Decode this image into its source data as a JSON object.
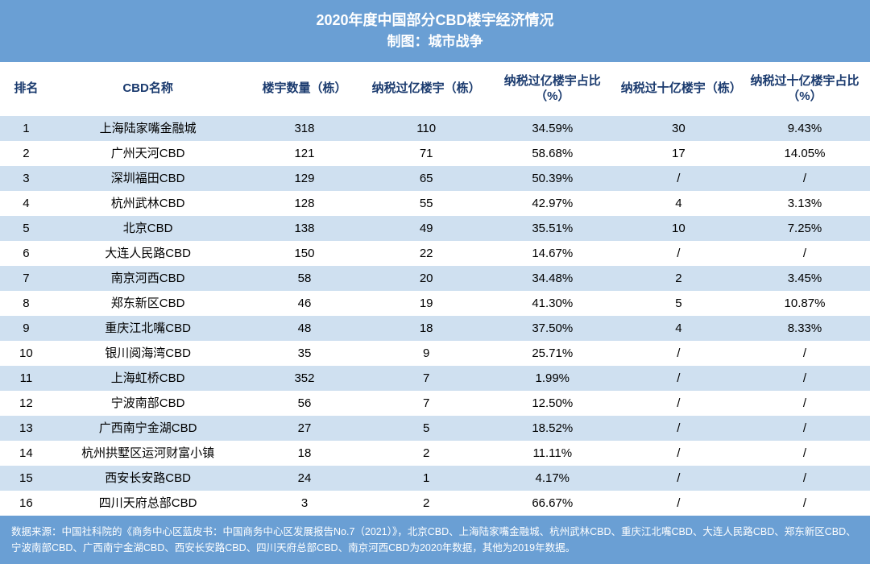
{
  "header": {
    "title": "2020年度中国部分CBD楼宇经济情况",
    "subtitle": "制图：城市战争"
  },
  "table": {
    "type": "table",
    "background_color": "#ffffff",
    "odd_row_color": "#cfe0f0",
    "even_row_color": "#ffffff",
    "header_bg": "#6a9fd4",
    "header_text_color": "#ffffff",
    "th_text_color": "#1a3a6e",
    "font_size": 15,
    "columns": [
      {
        "key": "rank",
        "label": "排名",
        "width": "6%"
      },
      {
        "key": "name",
        "label": "CBD名称",
        "width": "22%"
      },
      {
        "key": "building_count",
        "label": "楼宇数量（栋）",
        "width": "14%"
      },
      {
        "key": "over_yi",
        "label": "纳税过亿楼宇（栋）",
        "width": "14%"
      },
      {
        "key": "over_yi_pct",
        "label": "纳税过亿楼宇占比（%）",
        "width": "15%"
      },
      {
        "key": "over_shiyi",
        "label": "纳税过十亿楼宇（栋）",
        "width": "14%"
      },
      {
        "key": "over_shiyi_pct",
        "label": "纳税过十亿楼宇占比（%）",
        "width": "15%"
      }
    ],
    "rows": [
      {
        "rank": "1",
        "name": "上海陆家嘴金融城",
        "building_count": "318",
        "over_yi": "110",
        "over_yi_pct": "34.59%",
        "over_shiyi": "30",
        "over_shiyi_pct": "9.43%"
      },
      {
        "rank": "2",
        "name": "广州天河CBD",
        "building_count": "121",
        "over_yi": "71",
        "over_yi_pct": "58.68%",
        "over_shiyi": "17",
        "over_shiyi_pct": "14.05%"
      },
      {
        "rank": "3",
        "name": "深圳福田CBD",
        "building_count": "129",
        "over_yi": "65",
        "over_yi_pct": "50.39%",
        "over_shiyi": "/",
        "over_shiyi_pct": "/"
      },
      {
        "rank": "4",
        "name": "杭州武林CBD",
        "building_count": "128",
        "over_yi": "55",
        "over_yi_pct": "42.97%",
        "over_shiyi": "4",
        "over_shiyi_pct": "3.13%"
      },
      {
        "rank": "5",
        "name": "北京CBD",
        "building_count": "138",
        "over_yi": "49",
        "over_yi_pct": "35.51%",
        "over_shiyi": "10",
        "over_shiyi_pct": "7.25%"
      },
      {
        "rank": "6",
        "name": "大连人民路CBD",
        "building_count": "150",
        "over_yi": "22",
        "over_yi_pct": "14.67%",
        "over_shiyi": "/",
        "over_shiyi_pct": "/"
      },
      {
        "rank": "7",
        "name": "南京河西CBD",
        "building_count": "58",
        "over_yi": "20",
        "over_yi_pct": "34.48%",
        "over_shiyi": "2",
        "over_shiyi_pct": "3.45%"
      },
      {
        "rank": "8",
        "name": "郑东新区CBD",
        "building_count": "46",
        "over_yi": "19",
        "over_yi_pct": "41.30%",
        "over_shiyi": "5",
        "over_shiyi_pct": "10.87%"
      },
      {
        "rank": "9",
        "name": "重庆江北嘴CBD",
        "building_count": "48",
        "over_yi": "18",
        "over_yi_pct": "37.50%",
        "over_shiyi": "4",
        "over_shiyi_pct": "8.33%"
      },
      {
        "rank": "10",
        "name": "银川阅海湾CBD",
        "building_count": "35",
        "over_yi": "9",
        "over_yi_pct": "25.71%",
        "over_shiyi": "/",
        "over_shiyi_pct": "/"
      },
      {
        "rank": "11",
        "name": "上海虹桥CBD",
        "building_count": "352",
        "over_yi": "7",
        "over_yi_pct": "1.99%",
        "over_shiyi": "/",
        "over_shiyi_pct": "/"
      },
      {
        "rank": "12",
        "name": "宁波南部CBD",
        "building_count": "56",
        "over_yi": "7",
        "over_yi_pct": "12.50%",
        "over_shiyi": "/",
        "over_shiyi_pct": "/"
      },
      {
        "rank": "13",
        "name": "广西南宁金湖CBD",
        "building_count": "27",
        "over_yi": "5",
        "over_yi_pct": "18.52%",
        "over_shiyi": "/",
        "over_shiyi_pct": "/"
      },
      {
        "rank": "14",
        "name": "杭州拱墅区运河财富小镇",
        "building_count": "18",
        "over_yi": "2",
        "over_yi_pct": "11.11%",
        "over_shiyi": "/",
        "over_shiyi_pct": "/"
      },
      {
        "rank": "15",
        "name": "西安长安路CBD",
        "building_count": "24",
        "over_yi": "1",
        "over_yi_pct": "4.17%",
        "over_shiyi": "/",
        "over_shiyi_pct": "/"
      },
      {
        "rank": "16",
        "name": "四川天府总部CBD",
        "building_count": "3",
        "over_yi": "2",
        "over_yi_pct": "66.67%",
        "over_shiyi": "/",
        "over_shiyi_pct": "/"
      }
    ]
  },
  "footer": {
    "text": "数据来源：中国社科院的《商务中心区蓝皮书：中国商务中心区发展报告No.7（2021）》，北京CBD、上海陆家嘴金融城、杭州武林CBD、重庆江北嘴CBD、大连人民路CBD、郑东新区CBD、宁波南部CBD、广西南宁金湖CBD、西安长安路CBD、四川天府总部CBD、南京河西CBD为2020年数据，其他为2019年数据。"
  }
}
